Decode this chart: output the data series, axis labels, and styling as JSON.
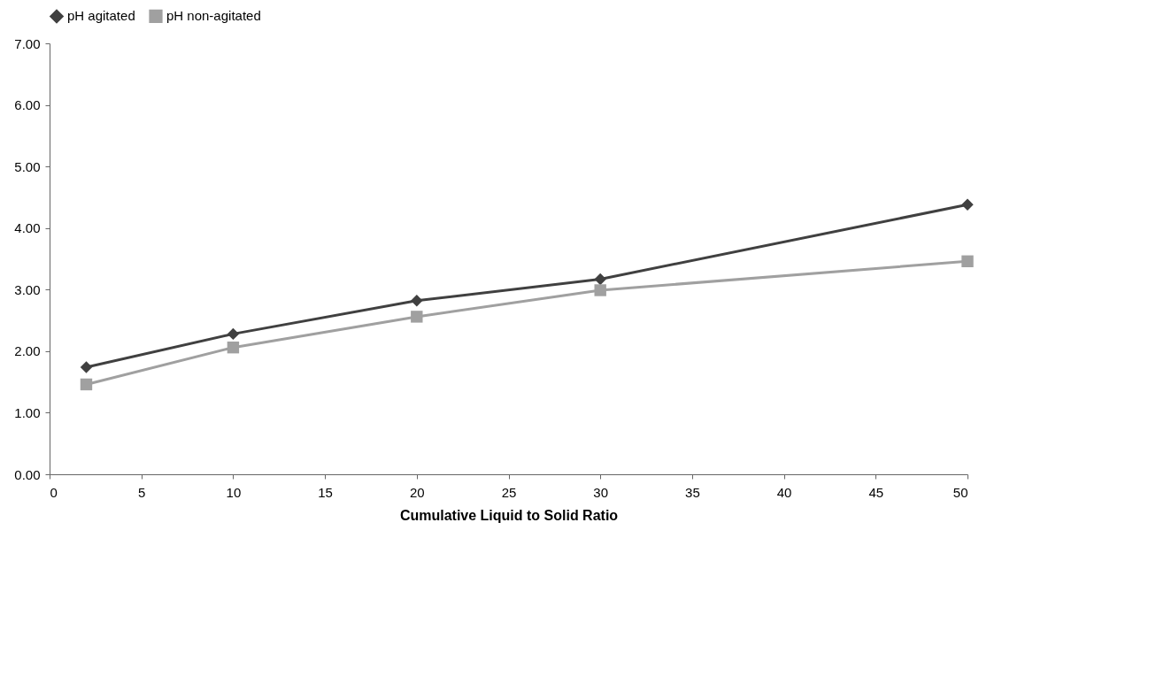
{
  "chart_data": {
    "type": "line",
    "xlabel": "Cumulative Liquid to Solid Ratio",
    "x": [
      2,
      10,
      20,
      30,
      50
    ],
    "series": [
      {
        "name": "pH agitated",
        "color": "#404040",
        "marker": "diamond",
        "values": [
          1.74,
          2.28,
          2.82,
          3.17,
          4.38
        ]
      },
      {
        "name": "pH non-agitated",
        "color": "#a0a0a0",
        "marker": "square",
        "values": [
          1.46,
          2.06,
          2.56,
          2.99,
          3.46
        ]
      }
    ],
    "xlim": [
      0,
      50
    ],
    "xticks": [
      0,
      5,
      10,
      15,
      20,
      25,
      30,
      35,
      40,
      45,
      50
    ],
    "ylim": [
      0,
      7
    ],
    "yticks": [
      {
        "value": 0,
        "label": "0.00"
      },
      {
        "value": 1,
        "label": "1.00"
      },
      {
        "value": 2,
        "label": "2.00"
      },
      {
        "value": 3,
        "label": "3.00"
      },
      {
        "value": 4,
        "label": "4.00"
      },
      {
        "value": 5,
        "label": "5.00"
      },
      {
        "value": 6,
        "label": "6.00"
      },
      {
        "value": 7,
        "label": "7.00"
      }
    ],
    "grid": false,
    "legend": "top",
    "line_style": "solid"
  }
}
